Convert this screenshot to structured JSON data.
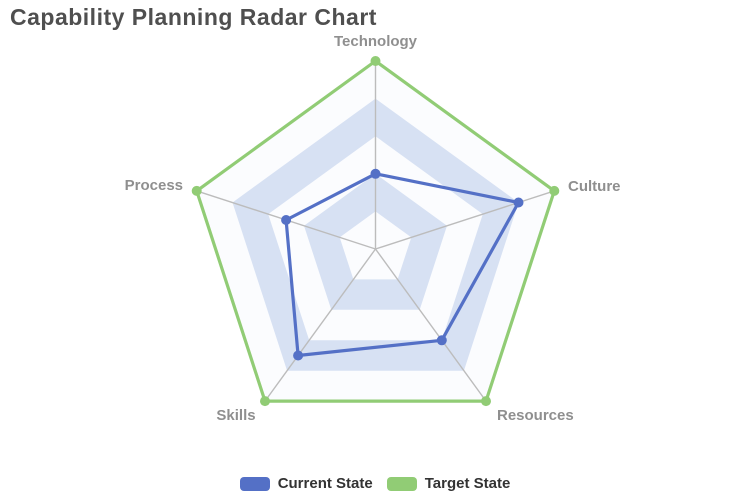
{
  "title": "Capability Planning Radar Chart",
  "colors": {
    "current": "#5470c6",
    "target": "#91cc75",
    "grid_line": "#bcbcbc",
    "ring_white": "#fbfcfe",
    "ring_light": "#d7e1f3",
    "title_color": "#4f4f4f",
    "axis_label_color": "#8f8f8f",
    "legend_text_color": "#333333"
  },
  "legend": {
    "items": [
      {
        "label": "Current State",
        "color_key": "current"
      },
      {
        "label": "Target State",
        "color_key": "target"
      }
    ]
  },
  "chart_data": {
    "type": "radar",
    "title": "Capability Planning Radar Chart",
    "indicators": [
      "Technology",
      "Culture",
      "Resources",
      "Skills",
      "Process"
    ],
    "max": 10,
    "rings": 5,
    "ring_fills_from_center": [
      "white",
      "light-blue",
      "white",
      "light-blue",
      "white"
    ],
    "legend_position": "bottom-center",
    "series": [
      {
        "name": "Current State",
        "color": "#5470c6",
        "values": [
          4,
          8,
          6,
          7,
          5
        ]
      },
      {
        "name": "Target State",
        "color": "#91cc75",
        "values": [
          10,
          10,
          10,
          10,
          10
        ]
      }
    ]
  }
}
